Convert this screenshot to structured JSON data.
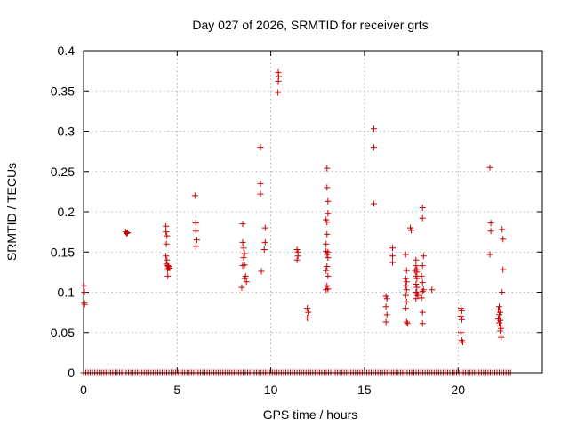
{
  "chart_data": {
    "type": "scatter",
    "title": "Day 027 of 2026, SRMTID for receiver grts",
    "xlabel": "GPS time / hours",
    "ylabel": "SRMTID / TECUs",
    "xlim": [
      0,
      24.5
    ],
    "ylim": [
      0,
      0.4
    ],
    "xticks": [
      0,
      5,
      10,
      15,
      20
    ],
    "xtick_labels": [
      "0",
      "5",
      "10",
      "15",
      "20"
    ],
    "yticks": [
      0,
      0.05,
      0.1,
      0.15,
      0.2,
      0.25,
      0.3,
      0.35,
      0.4
    ],
    "ytick_labels": [
      "0",
      "0.05",
      "0.1",
      "0.15",
      "0.2",
      "0.25",
      "0.3",
      "0.35",
      "0.4"
    ],
    "grid": true,
    "marker": "+",
    "color": "#cc0000",
    "zero_band": {
      "x_start": 0.0,
      "x_end": 22.8,
      "step": 0.12,
      "y": 0
    },
    "series": [
      {
        "name": "SRMTID",
        "points": [
          [
            0.03,
            0.108
          ],
          [
            0.05,
            0.1
          ],
          [
            0.04,
            0.087
          ],
          [
            0.06,
            0.085
          ],
          [
            2.25,
            0.175
          ],
          [
            2.3,
            0.173
          ],
          [
            2.35,
            0.174
          ],
          [
            4.4,
            0.182
          ],
          [
            4.4,
            0.175
          ],
          [
            4.45,
            0.17
          ],
          [
            4.42,
            0.16
          ],
          [
            4.4,
            0.145
          ],
          [
            4.45,
            0.14
          ],
          [
            4.42,
            0.135
          ],
          [
            4.5,
            0.133
          ],
          [
            4.55,
            0.13
          ],
          [
            4.6,
            0.13
          ],
          [
            4.5,
            0.12
          ],
          [
            4.55,
            0.132
          ],
          [
            4.48,
            0.128
          ],
          [
            5.95,
            0.22
          ],
          [
            6.0,
            0.186
          ],
          [
            6.0,
            0.176
          ],
          [
            6.05,
            0.165
          ],
          [
            6.0,
            0.157
          ],
          [
            8.5,
            0.185
          ],
          [
            8.5,
            0.162
          ],
          [
            8.55,
            0.155
          ],
          [
            8.6,
            0.148
          ],
          [
            8.55,
            0.143
          ],
          [
            8.6,
            0.134
          ],
          [
            8.5,
            0.133
          ],
          [
            8.65,
            0.12
          ],
          [
            8.6,
            0.117
          ],
          [
            8.7,
            0.113
          ],
          [
            8.45,
            0.106
          ],
          [
            9.45,
            0.28
          ],
          [
            9.45,
            0.235
          ],
          [
            9.45,
            0.222
          ],
          [
            9.7,
            0.18
          ],
          [
            9.7,
            0.162
          ],
          [
            9.65,
            0.153
          ],
          [
            9.5,
            0.126
          ],
          [
            10.4,
            0.373
          ],
          [
            10.42,
            0.368
          ],
          [
            10.4,
            0.362
          ],
          [
            10.38,
            0.348
          ],
          [
            11.4,
            0.153
          ],
          [
            11.45,
            0.15
          ],
          [
            11.45,
            0.145
          ],
          [
            11.4,
            0.14
          ],
          [
            11.95,
            0.08
          ],
          [
            12.0,
            0.075
          ],
          [
            11.95,
            0.068
          ],
          [
            13.0,
            0.254
          ],
          [
            13.0,
            0.23
          ],
          [
            13.05,
            0.213
          ],
          [
            13.05,
            0.198
          ],
          [
            12.95,
            0.19
          ],
          [
            13.0,
            0.187
          ],
          [
            13.0,
            0.172
          ],
          [
            12.95,
            0.16
          ],
          [
            12.95,
            0.151
          ],
          [
            13.05,
            0.15
          ],
          [
            13.0,
            0.147
          ],
          [
            13.05,
            0.143
          ],
          [
            13.0,
            0.132
          ],
          [
            12.95,
            0.127
          ],
          [
            13.05,
            0.12
          ],
          [
            13.0,
            0.108
          ],
          [
            12.95,
            0.103
          ],
          [
            13.05,
            0.104
          ],
          [
            15.5,
            0.303
          ],
          [
            15.5,
            0.28
          ],
          [
            15.5,
            0.21
          ],
          [
            16.15,
            0.095
          ],
          [
            16.2,
            0.092
          ],
          [
            16.15,
            0.082
          ],
          [
            16.2,
            0.072
          ],
          [
            16.15,
            0.063
          ],
          [
            16.5,
            0.155
          ],
          [
            16.5,
            0.145
          ],
          [
            16.5,
            0.137
          ],
          [
            17.2,
            0.147
          ],
          [
            17.25,
            0.127
          ],
          [
            17.2,
            0.117
          ],
          [
            17.25,
            0.113
          ],
          [
            17.2,
            0.108
          ],
          [
            17.25,
            0.103
          ],
          [
            17.2,
            0.096
          ],
          [
            17.25,
            0.088
          ],
          [
            17.2,
            0.08
          ],
          [
            17.25,
            0.063
          ],
          [
            17.3,
            0.061
          ],
          [
            17.45,
            0.18
          ],
          [
            17.5,
            0.177
          ],
          [
            17.75,
            0.14
          ],
          [
            17.75,
            0.133
          ],
          [
            17.8,
            0.128
          ],
          [
            17.7,
            0.127
          ],
          [
            17.8,
            0.125
          ],
          [
            17.75,
            0.12
          ],
          [
            17.8,
            0.117
          ],
          [
            17.75,
            0.11
          ],
          [
            17.8,
            0.106
          ],
          [
            17.75,
            0.1
          ],
          [
            17.8,
            0.098
          ],
          [
            17.85,
            0.096
          ],
          [
            17.75,
            0.092
          ],
          [
            18.1,
            0.205
          ],
          [
            18.1,
            0.192
          ],
          [
            18.15,
            0.145
          ],
          [
            18.1,
            0.133
          ],
          [
            18.05,
            0.12
          ],
          [
            18.1,
            0.112
          ],
          [
            18.15,
            0.103
          ],
          [
            18.1,
            0.101
          ],
          [
            18.05,
            0.093
          ],
          [
            18.1,
            0.075
          ],
          [
            18.1,
            0.061
          ],
          [
            18.6,
            0.103
          ],
          [
            20.15,
            0.08
          ],
          [
            20.2,
            0.077
          ],
          [
            20.15,
            0.07
          ],
          [
            20.2,
            0.066
          ],
          [
            20.15,
            0.05
          ],
          [
            20.2,
            0.04
          ],
          [
            20.25,
            0.038
          ],
          [
            21.7,
            0.255
          ],
          [
            21.75,
            0.186
          ],
          [
            21.75,
            0.176
          ],
          [
            21.7,
            0.147
          ],
          [
            22.2,
            0.082
          ],
          [
            22.15,
            0.078
          ],
          [
            22.25,
            0.075
          ],
          [
            22.2,
            0.072
          ],
          [
            22.15,
            0.067
          ],
          [
            22.25,
            0.065
          ],
          [
            22.2,
            0.062
          ],
          [
            22.25,
            0.058
          ],
          [
            22.3,
            0.055
          ],
          [
            22.25,
            0.052
          ],
          [
            22.3,
            0.044
          ],
          [
            22.35,
            0.178
          ],
          [
            22.4,
            0.166
          ],
          [
            22.4,
            0.128
          ],
          [
            22.35,
            0.1
          ]
        ]
      }
    ]
  }
}
